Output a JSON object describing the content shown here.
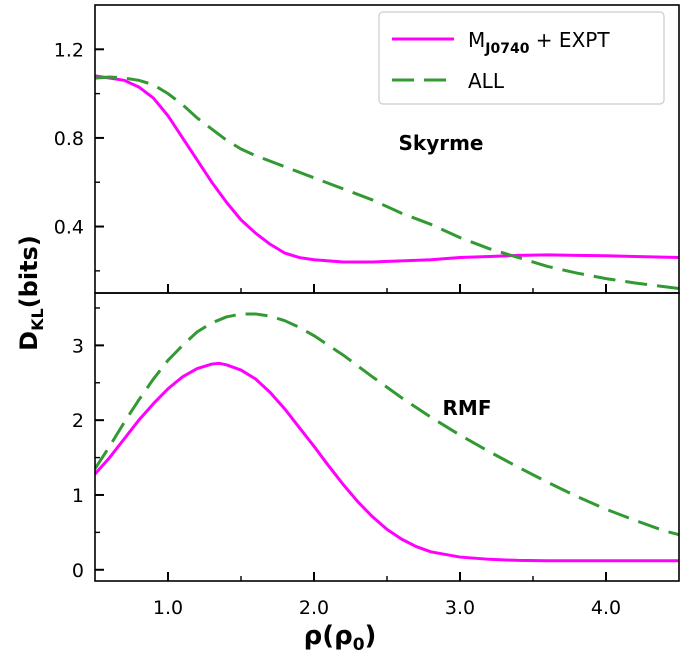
{
  "figure": {
    "ylabel": {
      "main": "D",
      "sub": "KL",
      "rest": "(bits)"
    },
    "xlabel": {
      "main": "ρ(ρ",
      "sub": "0",
      "rest": ")"
    }
  },
  "legend": {
    "entries": [
      {
        "text_main": "M",
        "text_sub": "J0740",
        "text_rest": " + EXPT",
        "color": "#ff00ff",
        "style": "solid"
      },
      {
        "text_main": "ALL",
        "text_sub": "",
        "text_rest": "",
        "color": "#339933",
        "style": "dashed"
      }
    ],
    "placement": "top-right of upper panel"
  },
  "chart_data": [
    {
      "type": "line",
      "panel_label": "Skyrme",
      "xlim": [
        0.5,
        4.5
      ],
      "ylim": [
        0.1,
        1.4
      ],
      "yticks": [
        0.4,
        0.8,
        1.2
      ],
      "ytick_labels": [
        "0.4",
        "0.8",
        "1.2"
      ],
      "xticks": [
        1.0,
        2.0,
        3.0,
        4.0
      ],
      "grid": false,
      "series": [
        {
          "name": "MJ0740 + EXPT",
          "color": "#ff00ff",
          "style": "solid",
          "x": [
            0.5,
            0.7,
            0.8,
            0.9,
            1.0,
            1.1,
            1.2,
            1.3,
            1.4,
            1.5,
            1.6,
            1.7,
            1.8,
            1.9,
            2.0,
            2.2,
            2.4,
            2.6,
            2.8,
            3.0,
            3.2,
            3.4,
            3.6,
            3.8,
            4.0,
            4.2,
            4.5
          ],
          "y": [
            1.08,
            1.06,
            1.03,
            0.98,
            0.9,
            0.8,
            0.7,
            0.6,
            0.51,
            0.43,
            0.37,
            0.32,
            0.28,
            0.26,
            0.25,
            0.24,
            0.24,
            0.245,
            0.25,
            0.26,
            0.265,
            0.27,
            0.272,
            0.27,
            0.268,
            0.265,
            0.26
          ]
        },
        {
          "name": "ALL",
          "color": "#339933",
          "style": "dashed",
          "x": [
            0.5,
            0.6,
            0.7,
            0.8,
            0.9,
            1.0,
            1.1,
            1.2,
            1.3,
            1.4,
            1.5,
            1.6,
            1.8,
            2.0,
            2.2,
            2.4,
            2.6,
            2.8,
            3.0,
            3.2,
            3.4,
            3.6,
            3.8,
            4.0,
            4.2,
            4.5
          ],
          "y": [
            1.07,
            1.075,
            1.07,
            1.06,
            1.04,
            1.0,
            0.95,
            0.89,
            0.84,
            0.79,
            0.75,
            0.72,
            0.67,
            0.62,
            0.57,
            0.52,
            0.46,
            0.41,
            0.35,
            0.3,
            0.26,
            0.22,
            0.19,
            0.165,
            0.145,
            0.12
          ]
        }
      ]
    },
    {
      "type": "line",
      "panel_label": "RMF",
      "xlim": [
        0.5,
        4.5
      ],
      "ylim": [
        -0.15,
        3.7
      ],
      "yticks": [
        0,
        1,
        2,
        3
      ],
      "ytick_labels": [
        "0",
        "1",
        "2",
        "3"
      ],
      "xticks": [
        1.0,
        2.0,
        3.0,
        4.0
      ],
      "xtick_labels": [
        "1.0",
        "2.0",
        "3.0",
        "4.0"
      ],
      "grid": false,
      "series": [
        {
          "name": "MJ0740 + EXPT",
          "color": "#ff00ff",
          "style": "solid",
          "x": [
            0.5,
            0.6,
            0.7,
            0.8,
            0.9,
            1.0,
            1.1,
            1.2,
            1.3,
            1.35,
            1.4,
            1.5,
            1.6,
            1.7,
            1.8,
            1.9,
            2.0,
            2.1,
            2.2,
            2.3,
            2.4,
            2.5,
            2.6,
            2.7,
            2.8,
            3.0,
            3.2,
            3.4,
            3.6,
            3.8,
            4.0,
            4.5
          ],
          "y": [
            1.28,
            1.5,
            1.75,
            2.0,
            2.22,
            2.42,
            2.58,
            2.69,
            2.75,
            2.76,
            2.74,
            2.67,
            2.55,
            2.37,
            2.15,
            1.9,
            1.65,
            1.39,
            1.14,
            0.91,
            0.71,
            0.54,
            0.41,
            0.31,
            0.24,
            0.17,
            0.14,
            0.125,
            0.12,
            0.12,
            0.12,
            0.12
          ]
        },
        {
          "name": "ALL",
          "color": "#339933",
          "style": "dashed",
          "x": [
            0.5,
            0.6,
            0.7,
            0.8,
            0.9,
            1.0,
            1.1,
            1.2,
            1.3,
            1.4,
            1.5,
            1.6,
            1.7,
            1.8,
            1.9,
            2.0,
            2.2,
            2.4,
            2.6,
            2.8,
            3.0,
            3.2,
            3.4,
            3.6,
            3.8,
            4.0,
            4.2,
            4.4,
            4.5
          ],
          "y": [
            1.35,
            1.65,
            1.97,
            2.27,
            2.55,
            2.8,
            3.0,
            3.18,
            3.3,
            3.38,
            3.42,
            3.42,
            3.39,
            3.33,
            3.24,
            3.13,
            2.87,
            2.58,
            2.3,
            2.04,
            1.8,
            1.58,
            1.37,
            1.17,
            0.98,
            0.81,
            0.66,
            0.52,
            0.47
          ]
        }
      ]
    }
  ]
}
